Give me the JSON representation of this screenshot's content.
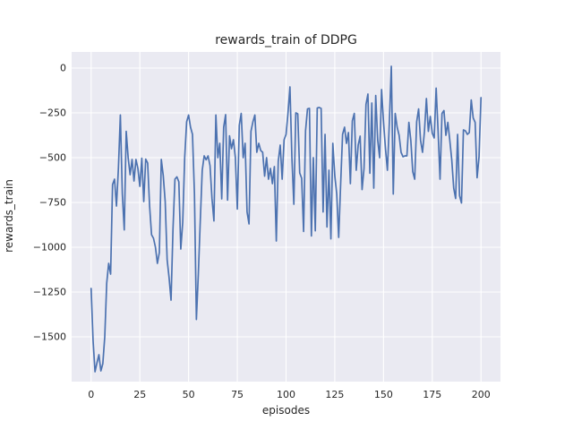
{
  "figure": {
    "title": "rewards_train of DDPG",
    "xlabel": "episodes",
    "ylabel": "rewards_train"
  },
  "colors": {
    "figure_background": "#ffffff",
    "axes_background": "#eaeaf2",
    "grid": "#ffffff",
    "line": "#4c72b0",
    "text": "#262626"
  },
  "chart_data": {
    "type": "line",
    "title": "rewards_train of DDPG",
    "xlabel": "episodes",
    "ylabel": "rewards_train",
    "xlim": [
      -10,
      210
    ],
    "ylim": [
      -1750,
      90
    ],
    "xticks": [
      0,
      25,
      50,
      75,
      100,
      125,
      150,
      175,
      200
    ],
    "yticks": [
      0,
      -250,
      -500,
      -750,
      -1000,
      -1250,
      -1500
    ],
    "grid": true,
    "legend": false,
    "series_name": "rewards_train",
    "x": [
      0,
      1,
      2,
      3,
      4,
      5,
      6,
      7,
      8,
      9,
      10,
      11,
      12,
      13,
      14,
      15,
      16,
      17,
      18,
      19,
      20,
      21,
      22,
      23,
      24,
      25,
      26,
      27,
      28,
      29,
      30,
      31,
      32,
      33,
      34,
      35,
      36,
      37,
      38,
      39,
      40,
      41,
      42,
      43,
      44,
      45,
      46,
      47,
      48,
      49,
      50,
      51,
      52,
      53,
      54,
      55,
      56,
      57,
      58,
      59,
      60,
      61,
      62,
      63,
      64,
      65,
      66,
      67,
      68,
      69,
      70,
      71,
      72,
      73,
      74,
      75,
      76,
      77,
      78,
      79,
      80,
      81,
      82,
      83,
      84,
      85,
      86,
      87,
      88,
      89,
      90,
      91,
      92,
      93,
      94,
      95,
      96,
      97,
      98,
      99,
      100,
      101,
      102,
      103,
      104,
      105,
      106,
      107,
      108,
      109,
      110,
      111,
      112,
      113,
      114,
      115,
      116,
      117,
      118,
      119,
      120,
      121,
      122,
      123,
      124,
      125,
      126,
      127,
      128,
      129,
      130,
      131,
      132,
      133,
      134,
      135,
      136,
      137,
      138,
      139,
      140,
      141,
      142,
      143,
      144,
      145,
      146,
      147,
      148,
      149,
      150,
      151,
      152,
      153,
      154,
      155,
      156,
      157,
      158,
      159,
      160,
      161,
      162,
      163,
      164,
      165,
      166,
      167,
      168,
      169,
      170,
      171,
      172,
      173,
      174,
      175,
      176,
      177,
      178,
      179,
      180,
      181,
      182,
      183,
      184,
      185,
      186,
      187,
      188,
      189,
      190,
      191,
      192,
      193,
      194,
      195,
      196,
      197,
      198,
      199,
      200
    ],
    "y": [
      -1230,
      -1520,
      -1695,
      -1645,
      -1600,
      -1690,
      -1650,
      -1500,
      -1200,
      -1090,
      -1150,
      -650,
      -620,
      -770,
      -560,
      -262,
      -700,
      -903,
      -353,
      -500,
      -595,
      -510,
      -630,
      -510,
      -560,
      -660,
      -503,
      -745,
      -508,
      -530,
      -770,
      -930,
      -950,
      -1000,
      -1090,
      -1030,
      -510,
      -600,
      -745,
      -1070,
      -1170,
      -1295,
      -900,
      -620,
      -607,
      -635,
      -1010,
      -860,
      -500,
      -300,
      -262,
      -330,
      -370,
      -700,
      -1403,
      -1150,
      -853,
      -570,
      -490,
      -512,
      -490,
      -545,
      -728,
      -853,
      -262,
      -500,
      -420,
      -730,
      -330,
      -260,
      -737,
      -378,
      -450,
      -400,
      -500,
      -787,
      -320,
      -253,
      -500,
      -420,
      -803,
      -870,
      -353,
      -300,
      -262,
      -470,
      -420,
      -460,
      -470,
      -603,
      -500,
      -620,
      -560,
      -645,
      -550,
      -965,
      -520,
      -430,
      -620,
      -400,
      -370,
      -250,
      -105,
      -500,
      -760,
      -250,
      -255,
      -585,
      -615,
      -912,
      -350,
      -228,
      -225,
      -937,
      -500,
      -908,
      -223,
      -220,
      -225,
      -803,
      -370,
      -887,
      -570,
      -953,
      -420,
      -600,
      -703,
      -945,
      -650,
      -370,
      -330,
      -420,
      -360,
      -645,
      -295,
      -253,
      -570,
      -430,
      -380,
      -678,
      -560,
      -203,
      -145,
      -587,
      -195,
      -670,
      -153,
      -400,
      -500,
      -120,
      -300,
      -450,
      -570,
      -300,
      10,
      -703,
      -253,
      -330,
      -375,
      -470,
      -495,
      -490,
      -490,
      -303,
      -403,
      -578,
      -620,
      -300,
      -228,
      -403,
      -470,
      -353,
      -170,
      -353,
      -270,
      -363,
      -390,
      -112,
      -353,
      -620,
      -253,
      -237,
      -375,
      -303,
      -403,
      -512,
      -670,
      -728,
      -370,
      -712,
      -753,
      -345,
      -350,
      -370,
      -360,
      -178,
      -278,
      -303,
      -612,
      -495,
      -165
    ]
  }
}
